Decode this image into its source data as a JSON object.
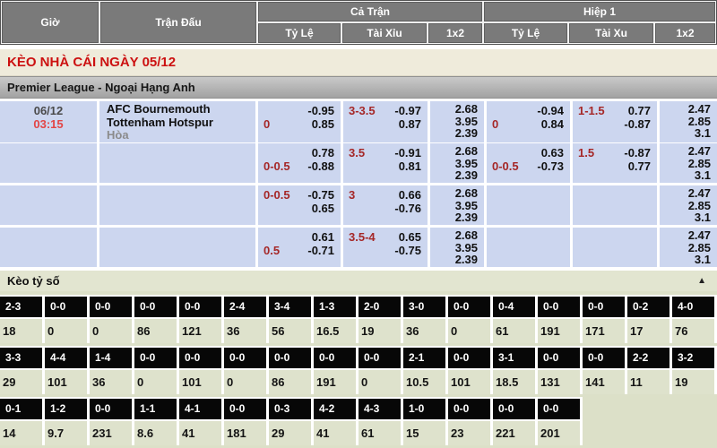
{
  "header": {
    "col_time": "Giờ",
    "col_match": "Trận Đấu",
    "group_full": "Cả Trận",
    "group_half": "Hiệp 1",
    "ft_sub": [
      "Tỷ Lệ",
      "Tài Xỉu",
      "1x2"
    ],
    "h1_sub": [
      "Tỷ Lệ",
      "Tài Xu",
      "1x2"
    ]
  },
  "banner": {
    "title": "KÈO NHÀ CÁI NGÀY 05/12"
  },
  "league": {
    "name": "Premier League - Ngoại Hạng Anh"
  },
  "match": {
    "date": "06/12",
    "time": "03:15",
    "home": "AFC Bournemouth",
    "away": "Tottenham Hotspur",
    "draw_label": "Hòa"
  },
  "odds_rows": [
    {
      "ft_hdp": {
        "top": [
          "",
          "-0.95"
        ],
        "bottom": [
          "0",
          "0.85"
        ]
      },
      "ft_ou": {
        "top": [
          "3-3.5",
          "-0.97"
        ],
        "bottom": [
          "",
          "0.87"
        ]
      },
      "ft_1x2": [
        "2.68",
        "3.95",
        "2.39"
      ],
      "h1_hdp": {
        "top": [
          "",
          "-0.94"
        ],
        "bottom": [
          "0",
          "0.84"
        ]
      },
      "h1_ou": {
        "top": [
          "1-1.5",
          "0.77"
        ],
        "bottom": [
          "",
          "-0.87"
        ]
      },
      "h1_1x2": [
        "2.47",
        "2.85",
        "3.1"
      ]
    },
    {
      "ft_hdp": {
        "top": [
          "",
          "0.78"
        ],
        "bottom": [
          "0-0.5",
          "-0.88"
        ]
      },
      "ft_ou": {
        "top": [
          "3.5",
          "-0.91"
        ],
        "bottom": [
          "",
          "0.81"
        ]
      },
      "ft_1x2": [
        "2.68",
        "3.95",
        "2.39"
      ],
      "h1_hdp": {
        "top": [
          "",
          "0.63"
        ],
        "bottom": [
          "0-0.5",
          "-0.73"
        ]
      },
      "h1_ou": {
        "top": [
          "1.5",
          "-0.87"
        ],
        "bottom": [
          "",
          "0.77"
        ]
      },
      "h1_1x2": [
        "2.47",
        "2.85",
        "3.1"
      ]
    },
    {
      "ft_hdp": {
        "top": [
          "0-0.5",
          "-0.75"
        ],
        "bottom": [
          "",
          "0.65"
        ]
      },
      "ft_ou": {
        "top": [
          "3",
          "0.66"
        ],
        "bottom": [
          "",
          "-0.76"
        ]
      },
      "ft_1x2": [
        "2.68",
        "3.95",
        "2.39"
      ],
      "h1_hdp": null,
      "h1_ou": null,
      "h1_1x2": [
        "2.47",
        "2.85",
        "3.1"
      ]
    },
    {
      "ft_hdp": {
        "top": [
          "",
          "0.61"
        ],
        "bottom": [
          "0.5",
          "-0.71"
        ]
      },
      "ft_ou": {
        "top": [
          "3.5-4",
          "0.65"
        ],
        "bottom": [
          "",
          "-0.75"
        ]
      },
      "ft_1x2": [
        "2.68",
        "3.95",
        "2.39"
      ],
      "h1_hdp": null,
      "h1_ou": null,
      "h1_1x2": [
        "2.47",
        "2.85",
        "3.1"
      ]
    }
  ],
  "score_section": {
    "title": "Kèo tỷ số",
    "collapse_icon": "▲"
  },
  "score_rows": [
    {
      "cells": [
        {
          "score": "2-3",
          "value": "18"
        },
        {
          "score": "0-0",
          "value": "0"
        },
        {
          "score": "0-0",
          "value": "0"
        },
        {
          "score": "0-0",
          "value": "86"
        },
        {
          "score": "0-0",
          "value": "121"
        },
        {
          "score": "2-4",
          "value": "36"
        },
        {
          "score": "3-4",
          "value": "56"
        },
        {
          "score": "1-3",
          "value": "16.5"
        },
        {
          "score": "2-0",
          "value": "19"
        },
        {
          "score": "3-0",
          "value": "36"
        },
        {
          "score": "0-0",
          "value": "0"
        },
        {
          "score": "0-4",
          "value": "61"
        },
        {
          "score": "0-0",
          "value": "191"
        },
        {
          "score": "0-0",
          "value": "171"
        },
        {
          "score": "0-2",
          "value": "17"
        },
        {
          "score": "4-0",
          "value": "76"
        }
      ]
    },
    {
      "cells": [
        {
          "score": "3-3",
          "value": "29"
        },
        {
          "score": "4-4",
          "value": "101"
        },
        {
          "score": "1-4",
          "value": "36"
        },
        {
          "score": "0-0",
          "value": "0"
        },
        {
          "score": "0-0",
          "value": "101"
        },
        {
          "score": "0-0",
          "value": "0"
        },
        {
          "score": "0-0",
          "value": "86"
        },
        {
          "score": "0-0",
          "value": "191"
        },
        {
          "score": "0-0",
          "value": "0"
        },
        {
          "score": "2-1",
          "value": "10.5"
        },
        {
          "score": "0-0",
          "value": "101"
        },
        {
          "score": "3-1",
          "value": "18.5"
        },
        {
          "score": "0-0",
          "value": "131"
        },
        {
          "score": "0-0",
          "value": "141"
        },
        {
          "score": "2-2",
          "value": "11"
        },
        {
          "score": "3-2",
          "value": "19"
        }
      ]
    },
    {
      "cells": [
        {
          "score": "0-1",
          "value": "14"
        },
        {
          "score": "1-2",
          "value": "9.7"
        },
        {
          "score": "0-0",
          "value": "231"
        },
        {
          "score": "1-1",
          "value": "8.6"
        },
        {
          "score": "4-1",
          "value": "41"
        },
        {
          "score": "0-0",
          "value": "181"
        },
        {
          "score": "0-3",
          "value": "29"
        },
        {
          "score": "4-2",
          "value": "41"
        },
        {
          "score": "4-3",
          "value": "61"
        },
        {
          "score": "1-0",
          "value": "15"
        },
        {
          "score": "0-0",
          "value": "23"
        },
        {
          "score": "0-0",
          "value": "221"
        },
        {
          "score": "0-0",
          "value": "201"
        }
      ]
    }
  ],
  "score_partial_cols": 13,
  "colors": {
    "header_bg": "#7a7a7a",
    "banner_bg": "#efebdb",
    "banner_text": "#cc1111",
    "league_bar_bg": "#b5b5b5",
    "odds_cell_bg": "#ccd6ef",
    "handicap_red": "#a52727",
    "time_red": "#e34545",
    "score_header_bg": "#070707",
    "score_area_bg": "#dce0c8"
  }
}
